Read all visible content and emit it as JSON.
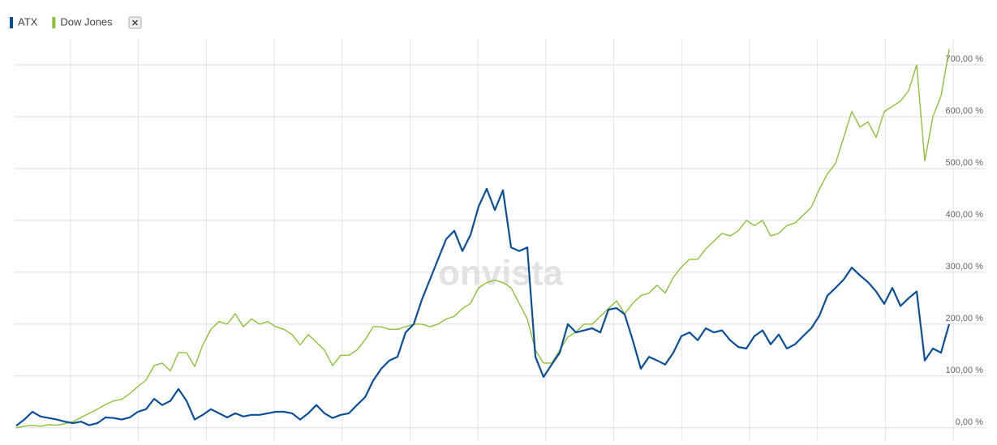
{
  "chart_data": {
    "type": "line",
    "watermark": "onvista",
    "series": [
      {
        "name": "ATX",
        "color": "#0b4f99",
        "values": [
          4,
          16,
          31,
          22,
          19,
          16,
          12,
          9,
          12,
          5,
          9,
          20,
          19,
          16,
          20,
          31,
          36,
          56,
          44,
          52,
          75,
          52,
          16,
          25,
          36,
          28,
          20,
          28,
          22,
          25,
          25,
          28,
          31,
          31,
          28,
          16,
          28,
          44,
          28,
          19,
          25,
          28,
          44,
          59,
          91,
          114,
          130,
          137,
          184,
          200,
          247,
          286,
          325,
          364,
          380,
          341,
          372,
          427,
          461,
          420,
          458,
          348,
          341,
          348,
          137,
          98,
          122,
          145,
          200,
          184,
          188,
          192,
          184,
          228,
          231,
          219,
          169,
          114,
          137,
          130,
          122,
          145,
          177,
          184,
          169,
          192,
          184,
          188,
          169,
          156,
          153,
          177,
          188,
          161,
          180,
          153,
          161,
          177,
          192,
          216,
          255,
          270,
          286,
          309,
          294,
          281,
          263,
          239,
          270,
          235,
          250,
          263,
          130,
          153,
          145,
          200
        ]
      },
      {
        "name": "Dow Jones",
        "color": "#8dc03a",
        "values": [
          0,
          3,
          5,
          3,
          6,
          5,
          8,
          12,
          20,
          28,
          36,
          45,
          52,
          55,
          66,
          80,
          92,
          120,
          125,
          110,
          145,
          145,
          118,
          160,
          190,
          205,
          200,
          220,
          195,
          210,
          200,
          205,
          195,
          190,
          180,
          160,
          180,
          165,
          150,
          120,
          140,
          140,
          150,
          170,
          195,
          195,
          190,
          190,
          195,
          200,
          200,
          195,
          200,
          210,
          215,
          230,
          240,
          270,
          280,
          285,
          280,
          270,
          240,
          210,
          150,
          125,
          125,
          150,
          175,
          185,
          200,
          200,
          215,
          230,
          245,
          220,
          240,
          255,
          260,
          275,
          260,
          290,
          310,
          325,
          325,
          345,
          360,
          375,
          370,
          380,
          400,
          390,
          400,
          370,
          375,
          390,
          395,
          410,
          425,
          460,
          490,
          510,
          560,
          610,
          580,
          590,
          560,
          610,
          620,
          630,
          650,
          700,
          515,
          600,
          640,
          730
        ]
      }
    ],
    "ylim": [
      -19,
      750
    ],
    "yticks": [
      {
        "value": 0,
        "label": "0,00 %"
      },
      {
        "value": 100,
        "label": "100,00 %"
      },
      {
        "value": 200,
        "label": "200,00 %"
      },
      {
        "value": 300,
        "label": "300,00 %"
      },
      {
        "value": 400,
        "label": "400,00 %"
      },
      {
        "value": 500,
        "label": "500,00 %"
      },
      {
        "value": 600,
        "label": "600,00 %"
      },
      {
        "value": 700,
        "label": "700,00 %"
      }
    ],
    "grid": true
  }
}
